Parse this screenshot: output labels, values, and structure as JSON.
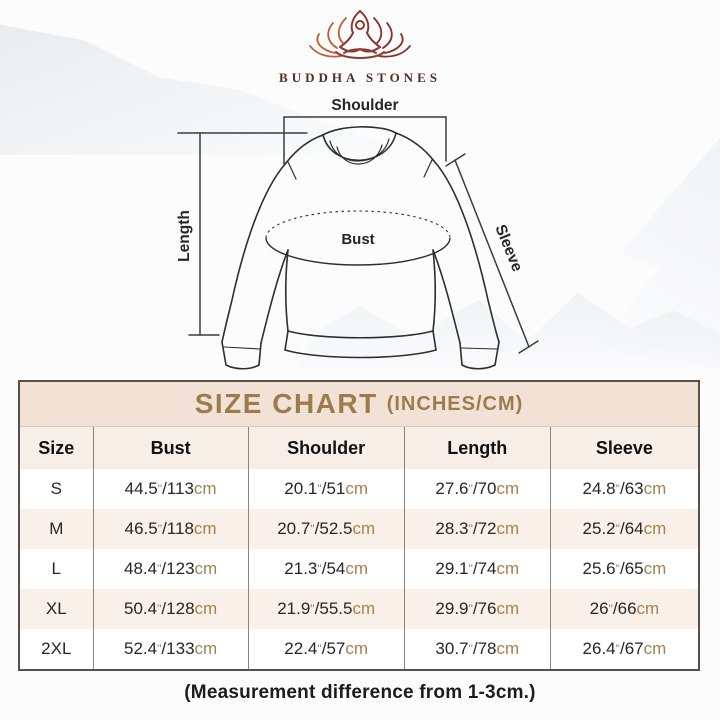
{
  "brand": {
    "name": "BUDDHA STONES"
  },
  "diagram": {
    "labels": {
      "shoulder": "Shoulder",
      "length": "Length",
      "bust": "Bust",
      "sleeve": "Sleeve"
    }
  },
  "size_chart": {
    "title": "SIZE CHART",
    "title_suffix": "(INCHES/CM)",
    "columns": [
      "Size",
      "Bust",
      "Shoulder",
      "Length",
      "Sleeve"
    ],
    "units": {
      "inch_mark": "\"",
      "separator": "/",
      "cm_label": "cm"
    },
    "rows": [
      {
        "size": "S",
        "bust": {
          "in": "44.5",
          "cm": "113"
        },
        "shoulder": {
          "in": "20.1",
          "cm": "51"
        },
        "length": {
          "in": "27.6",
          "cm": "70"
        },
        "sleeve": {
          "in": "24.8",
          "cm": "63"
        }
      },
      {
        "size": "M",
        "bust": {
          "in": "46.5",
          "cm": "118"
        },
        "shoulder": {
          "in": "20.7",
          "cm": "52.5"
        },
        "length": {
          "in": "28.3",
          "cm": "72"
        },
        "sleeve": {
          "in": "25.2",
          "cm": "64"
        }
      },
      {
        "size": "L",
        "bust": {
          "in": "48.4",
          "cm": "123"
        },
        "shoulder": {
          "in": "21.3",
          "cm": "54"
        },
        "length": {
          "in": "29.1",
          "cm": "74"
        },
        "sleeve": {
          "in": "25.6",
          "cm": "65"
        }
      },
      {
        "size": "XL",
        "bust": {
          "in": "50.4",
          "cm": "128"
        },
        "shoulder": {
          "in": "21.9",
          "cm": "55.5"
        },
        "length": {
          "in": "29.9",
          "cm": "76"
        },
        "sleeve": {
          "in": "26",
          "cm": "66"
        }
      },
      {
        "size": "2XL",
        "bust": {
          "in": "52.4",
          "cm": "133"
        },
        "shoulder": {
          "in": "22.4",
          "cm": "57"
        },
        "length": {
          "in": "30.7",
          "cm": "78"
        },
        "sleeve": {
          "in": "26.4",
          "cm": "67"
        }
      }
    ]
  },
  "footer": {
    "note": "(Measurement difference from 1-3cm.)"
  },
  "colors": {
    "title_text": "#9c7c4c",
    "unit_text": "#a5824e",
    "band_bg": "#f2e2d6",
    "header_bg": "#f6eee7",
    "row_alt_bg": "#f8f0e9",
    "table_border": "#57504b",
    "logo_left_petals": "#bf5f3a",
    "logo_right_petals": "#86302a",
    "logo_figure": "#8a3b2e"
  },
  "chart_data": {
    "type": "table",
    "title": "SIZE CHART (INCHES/CM)",
    "columns": [
      "Size",
      "Bust",
      "Shoulder",
      "Length",
      "Sleeve"
    ],
    "rows": [
      [
        "S",
        "44.5\"/113cm",
        "20.1\"/51cm",
        "27.6\"/70cm",
        "24.8\"/63cm"
      ],
      [
        "M",
        "46.5\"/118cm",
        "20.7\"/52.5cm",
        "28.3\"/72cm",
        "25.2\"/64cm"
      ],
      [
        "L",
        "48.4\"/123cm",
        "21.3\"/54cm",
        "29.1\"/74cm",
        "25.6\"/65cm"
      ],
      [
        "XL",
        "50.4\"/128cm",
        "21.9\"/55.5cm",
        "29.9\"/76cm",
        "26\"/66cm"
      ],
      [
        "2XL",
        "52.4\"/133cm",
        "22.4\"/57cm",
        "30.7\"/78cm",
        "26.4\"/67cm"
      ]
    ],
    "note": "(Measurement difference from 1-3cm.)"
  }
}
